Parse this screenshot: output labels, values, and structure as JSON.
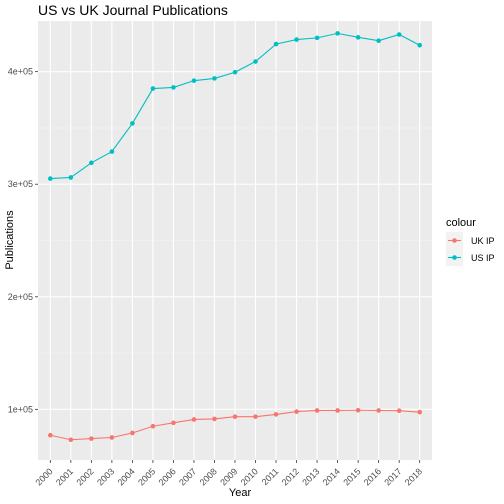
{
  "chart_data": {
    "type": "line",
    "title": "US vs UK Journal Publications",
    "xlabel": "Year",
    "ylabel": "Publications",
    "x": [
      "2000",
      "2001",
      "2002",
      "2003",
      "2004",
      "2005",
      "2006",
      "2007",
      "2008",
      "2009",
      "2010",
      "2011",
      "2012",
      "2013",
      "2014",
      "2015",
      "2016",
      "2017",
      "2018"
    ],
    "ylim": [
      55000,
      445000
    ],
    "yticks": [
      100000,
      200000,
      300000,
      400000
    ],
    "ytick_labels": [
      "1e+05",
      "2e+05",
      "3e+05",
      "4e+05"
    ],
    "grid": true,
    "legend": {
      "title": "colour",
      "position": "right"
    },
    "series": [
      {
        "name": "UK IP",
        "color": "#F8766D",
        "values": [
          77000,
          73000,
          74000,
          75000,
          79000,
          85000,
          88000,
          91000,
          91500,
          93500,
          93500,
          95500,
          98000,
          99000,
          99000,
          99200,
          99000,
          98800,
          97500
        ]
      },
      {
        "name": "US IP",
        "color": "#00BFC4",
        "values": [
          305000,
          306000,
          319000,
          329000,
          354000,
          385000,
          386000,
          392000,
          394000,
          399500,
          409000,
          424500,
          428500,
          430000,
          434000,
          430500,
          427500,
          433000,
          423500
        ]
      }
    ]
  }
}
